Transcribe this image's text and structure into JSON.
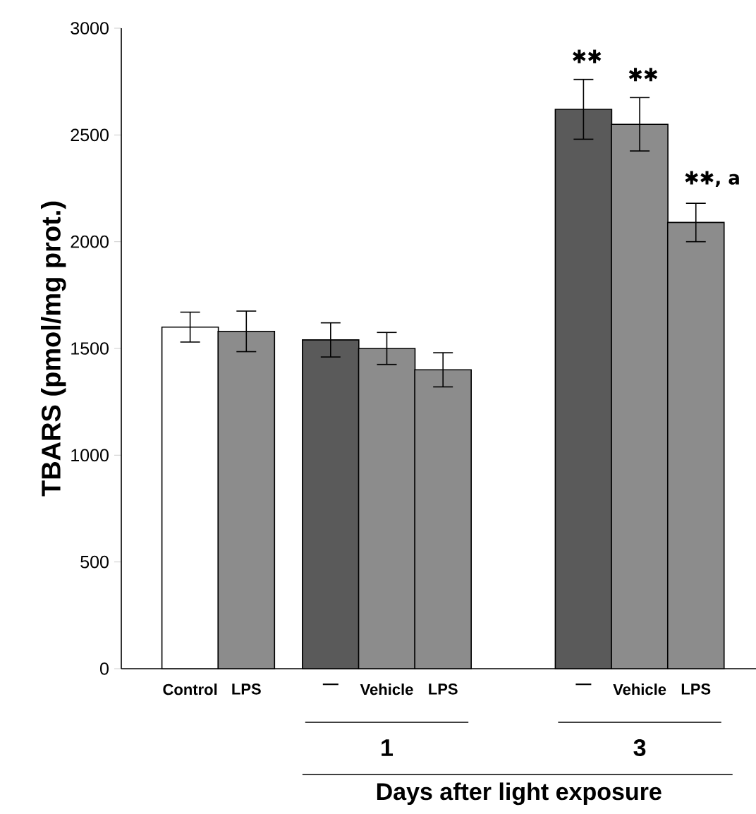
{
  "chart_data": {
    "type": "bar",
    "categories": [
      "Control",
      "LPS",
      "—",
      "Vehicle",
      "LPS",
      "—",
      "Vehicle",
      "LPS"
    ],
    "values": [
      1600,
      1580,
      1540,
      1500,
      1400,
      2620,
      2550,
      2090
    ],
    "errors": [
      70,
      95,
      80,
      75,
      80,
      140,
      125,
      90
    ],
    "colors": [
      "#ffffff",
      "#8c8c8c",
      "#5a5a5a",
      "#8c8c8c",
      "#8c8c8c",
      "#5a5a5a",
      "#8c8c8c",
      "#8c8c8c"
    ],
    "ylabel": "TBARS (pmol/mg prot.)",
    "xlabel": "Days after light exposure",
    "ylim": [
      0,
      3000
    ],
    "yticks": [
      0,
      500,
      1000,
      1500,
      2000,
      2500,
      3000
    ],
    "annotations": [
      "1",
      "3",
      "✱✱",
      "✱✱",
      "✱✱, a"
    ],
    "grid": false
  }
}
